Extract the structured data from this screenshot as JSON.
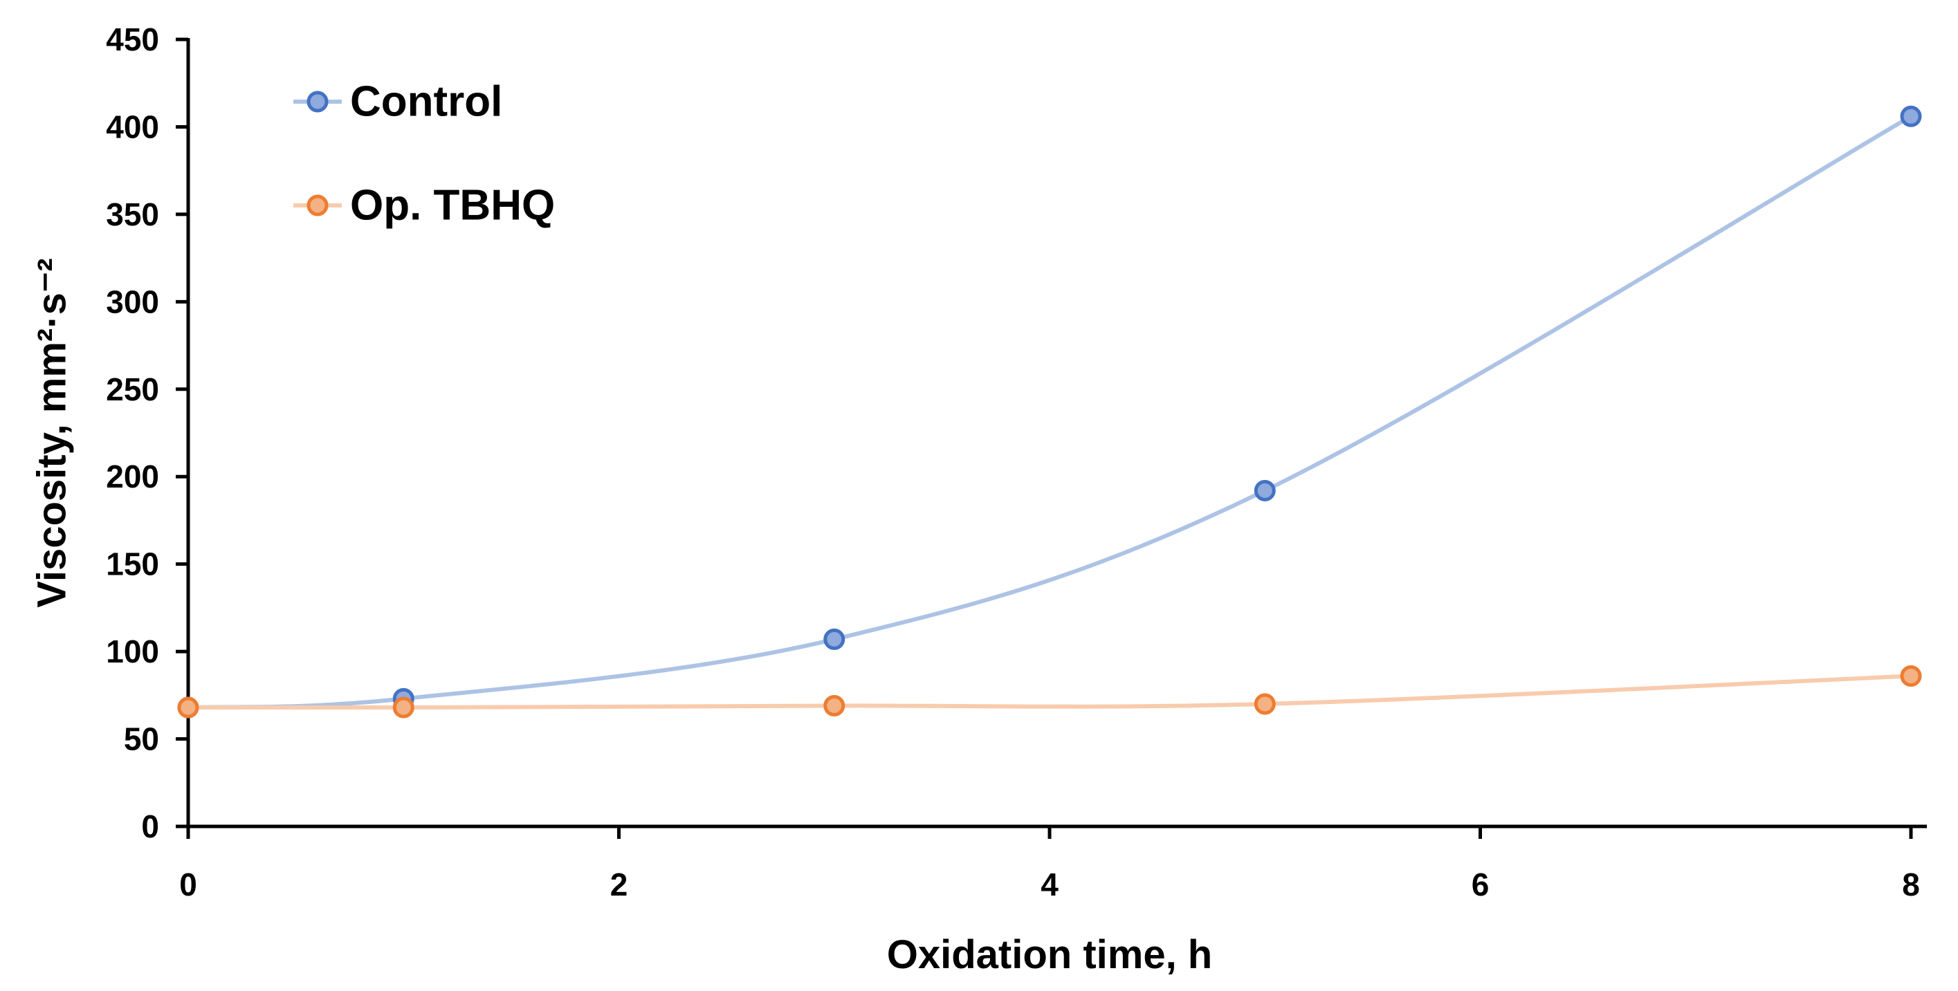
{
  "chart_data": {
    "type": "line",
    "x": [
      0,
      1,
      3,
      5,
      8
    ],
    "series": [
      {
        "name": "Control",
        "values": [
          68,
          73,
          107,
          192,
          406
        ],
        "line_color": "#ADC3E5",
        "marker_fill": "#8FAADC",
        "marker_border": "#4472C4"
      },
      {
        "name": "Op. TBHQ",
        "values": [
          68,
          68,
          69,
          70,
          86
        ],
        "line_color": "#F8CBAD",
        "marker_fill": "#F4B183",
        "marker_border": "#ED7D31"
      }
    ],
    "title": "",
    "xlabel": "Oxidation time, h",
    "ylabel": "Viscosity, mm²·s⁻²",
    "xlim": [
      0,
      8
    ],
    "ylim": [
      0,
      450
    ],
    "x_ticks": [
      0,
      2,
      4,
      6,
      8
    ],
    "y_tick_step": 50,
    "grid": false,
    "smoothed": true,
    "legend_position": "top-left-inside",
    "axis_color": "#000000",
    "text_color": "#000000",
    "background": "#FFFFFF"
  }
}
